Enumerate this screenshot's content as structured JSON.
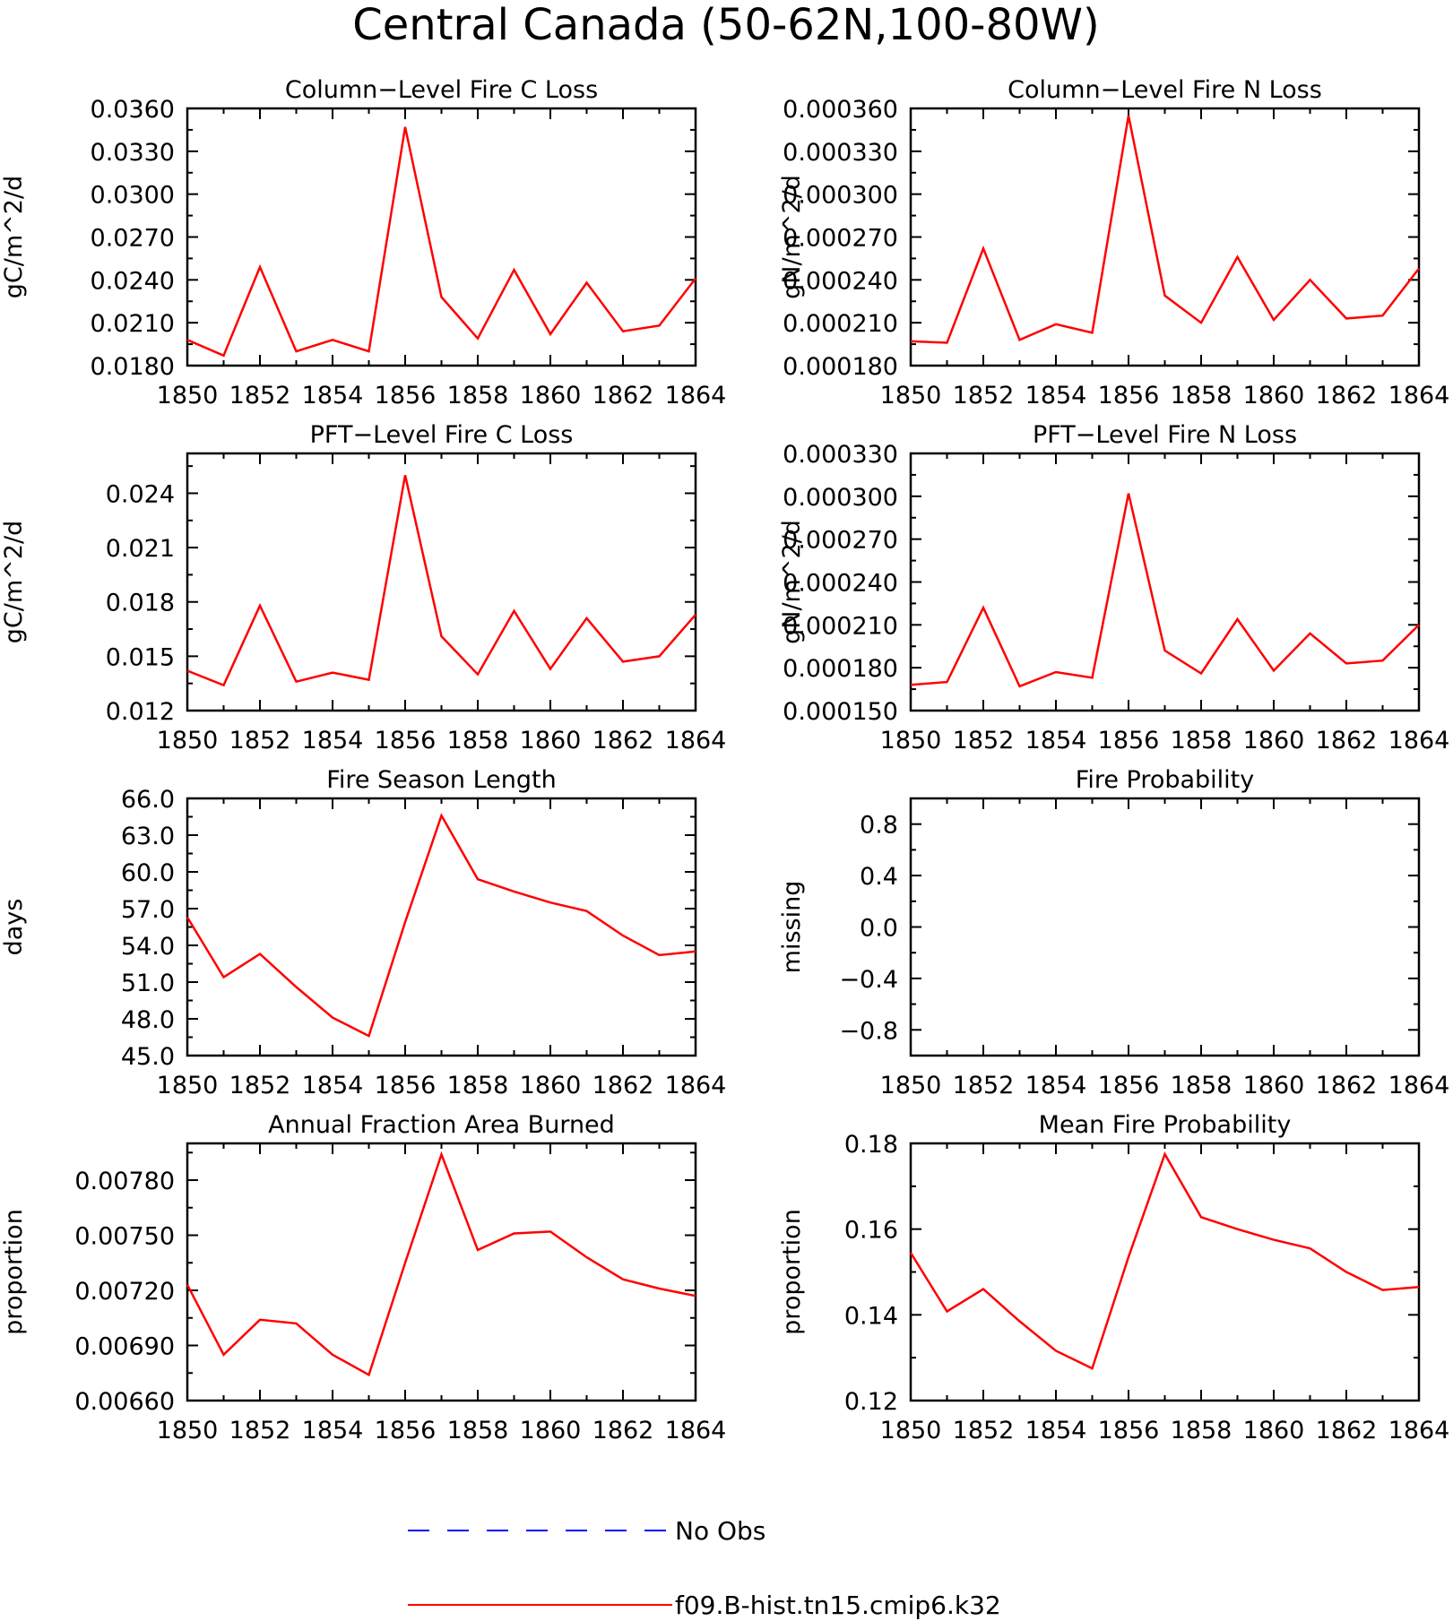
{
  "figure_title": "Central Canada (50-62N,100-80W)",
  "legend": [
    {
      "label": "No Obs",
      "color": "#0000ff",
      "dash": true
    },
    {
      "label": "f09.B-hist.tn15.cmip6.k32",
      "color": "#ff0000",
      "dash": false
    }
  ],
  "chart_data": [
    {
      "type": "line",
      "title": "Column-Level Fire C Loss",
      "xlabel": "",
      "ylabel": "gC/m^2/d",
      "xlim": [
        1850,
        1864
      ],
      "ylim": [
        0.018,
        0.036
      ],
      "xticks": [
        "1850",
        "1852",
        "1854",
        "1856",
        "1858",
        "1860",
        "1862",
        "1864"
      ],
      "yticks": [
        "0.0180",
        "0.0210",
        "0.0240",
        "0.0270",
        "0.0300",
        "0.0330",
        "0.0360"
      ],
      "grid": false,
      "series": [
        {
          "color": "#ff0000",
          "x": [
            1850,
            1851,
            1852,
            1853,
            1854,
            1855,
            1856,
            1857,
            1858,
            1859,
            1860,
            1861,
            1862,
            1863,
            1864
          ],
          "values": [
            0.0198,
            0.0187,
            0.0249,
            0.019,
            0.0198,
            0.019,
            0.0347,
            0.0228,
            0.0199,
            0.0247,
            0.0202,
            0.0238,
            0.0204,
            0.0208,
            0.0241
          ]
        }
      ]
    },
    {
      "type": "line",
      "title": "Column-Level Fire N Loss",
      "xlabel": "",
      "ylabel": "gN/m^2/d",
      "xlim": [
        1850,
        1864
      ],
      "ylim": [
        0.00018,
        0.00036
      ],
      "xticks": [
        "1850",
        "1852",
        "1854",
        "1856",
        "1858",
        "1860",
        "1862",
        "1864"
      ],
      "yticks": [
        "0.000180",
        "0.000210",
        "0.000240",
        "0.000270",
        "0.000300",
        "0.000330",
        "0.000360"
      ],
      "grid": false,
      "series": [
        {
          "color": "#ff0000",
          "x": [
            1850,
            1851,
            1852,
            1853,
            1854,
            1855,
            1856,
            1857,
            1858,
            1859,
            1860,
            1861,
            1862,
            1863,
            1864
          ],
          "values": [
            0.000197,
            0.000196,
            0.000262,
            0.000198,
            0.000209,
            0.000203,
            0.000355,
            0.000229,
            0.00021,
            0.000256,
            0.000212,
            0.00024,
            0.000213,
            0.000215,
            0.000248
          ]
        }
      ]
    },
    {
      "type": "line",
      "title": "PFT-Level Fire C Loss",
      "xlabel": "",
      "ylabel": "gC/m^2/d",
      "xlim": [
        1850,
        1864
      ],
      "ylim": [
        0.012,
        0.0262
      ],
      "xticks": [
        "1850",
        "1852",
        "1854",
        "1856",
        "1858",
        "1860",
        "1862",
        "1864"
      ],
      "yticks": [
        "0.012",
        "0.015",
        "0.018",
        "0.021",
        "0.024"
      ],
      "grid": false,
      "series": [
        {
          "color": "#ff0000",
          "x": [
            1850,
            1851,
            1852,
            1853,
            1854,
            1855,
            1856,
            1857,
            1858,
            1859,
            1860,
            1861,
            1862,
            1863,
            1864
          ],
          "values": [
            0.0142,
            0.0134,
            0.0178,
            0.0136,
            0.0141,
            0.0137,
            0.025,
            0.0161,
            0.014,
            0.0175,
            0.0143,
            0.0171,
            0.0147,
            0.015,
            0.0173
          ]
        }
      ]
    },
    {
      "type": "line",
      "title": "PFT-Level Fire N Loss",
      "xlabel": "",
      "ylabel": "gN/m^2/d",
      "xlim": [
        1850,
        1864
      ],
      "ylim": [
        0.00015,
        0.00033
      ],
      "xticks": [
        "1850",
        "1852",
        "1854",
        "1856",
        "1858",
        "1860",
        "1862",
        "1864"
      ],
      "yticks": [
        "0.000150",
        "0.000180",
        "0.000210",
        "0.000240",
        "0.000270",
        "0.000300",
        "0.000330"
      ],
      "grid": false,
      "series": [
        {
          "color": "#ff0000",
          "x": [
            1850,
            1851,
            1852,
            1853,
            1854,
            1855,
            1856,
            1857,
            1858,
            1859,
            1860,
            1861,
            1862,
            1863,
            1864
          ],
          "values": [
            0.000168,
            0.00017,
            0.000222,
            0.000167,
            0.000177,
            0.000173,
            0.000302,
            0.000192,
            0.000176,
            0.000214,
            0.000178,
            0.000204,
            0.000183,
            0.000185,
            0.00021
          ]
        }
      ]
    },
    {
      "type": "line",
      "title": "Fire Season Length",
      "xlabel": "",
      "ylabel": "days",
      "xlim": [
        1850,
        1864
      ],
      "ylim": [
        45,
        66
      ],
      "xticks": [
        "1850",
        "1852",
        "1854",
        "1856",
        "1858",
        "1860",
        "1862",
        "1864"
      ],
      "yticks": [
        "45.0",
        "48.0",
        "51.0",
        "54.0",
        "57.0",
        "60.0",
        "63.0",
        "66.0"
      ],
      "grid": false,
      "series": [
        {
          "color": "#ff0000",
          "x": [
            1850,
            1851,
            1852,
            1853,
            1854,
            1855,
            1856,
            1857,
            1858,
            1859,
            1860,
            1861,
            1862,
            1863,
            1864
          ],
          "values": [
            56.3,
            51.4,
            53.3,
            50.6,
            48.1,
            46.6,
            55.9,
            64.6,
            59.4,
            58.4,
            57.5,
            56.8,
            54.8,
            53.2,
            53.5
          ]
        }
      ]
    },
    {
      "type": "line",
      "title": "Fire Probability",
      "xlabel": "",
      "ylabel": "missing",
      "xlim": [
        1850,
        1864
      ],
      "ylim": [
        -1.0,
        1.0
      ],
      "xticks": [
        "1850",
        "1852",
        "1854",
        "1856",
        "1858",
        "1860",
        "1862",
        "1864"
      ],
      "yticks": [
        "-0.8",
        "-0.4",
        "0.0",
        "0.4",
        "0.8"
      ],
      "grid": false,
      "series": []
    },
    {
      "type": "line",
      "title": "Annual Fraction Area Burned",
      "xlabel": "",
      "ylabel": "proportion",
      "xlim": [
        1850,
        1864
      ],
      "ylim": [
        0.0066,
        0.008
      ],
      "xticks": [
        "1850",
        "1852",
        "1854",
        "1856",
        "1858",
        "1860",
        "1862",
        "1864"
      ],
      "yticks": [
        "0.00660",
        "0.00690",
        "0.00720",
        "0.00750",
        "0.00780"
      ],
      "grid": false,
      "series": [
        {
          "color": "#ff0000",
          "x": [
            1850,
            1851,
            1852,
            1853,
            1854,
            1855,
            1856,
            1857,
            1858,
            1859,
            1860,
            1861,
            1862,
            1863,
            1864
          ],
          "values": [
            0.00723,
            0.00685,
            0.00704,
            0.00702,
            0.00685,
            0.00674,
            0.00735,
            0.00794,
            0.00742,
            0.00751,
            0.00752,
            0.00738,
            0.00726,
            0.00721,
            0.00717
          ]
        }
      ]
    },
    {
      "type": "line",
      "title": "Mean Fire Probability",
      "xlabel": "",
      "ylabel": "proportion",
      "xlim": [
        1850,
        1864
      ],
      "ylim": [
        0.12,
        0.18
      ],
      "xticks": [
        "1850",
        "1852",
        "1854",
        "1856",
        "1858",
        "1860",
        "1862",
        "1864"
      ],
      "yticks": [
        "0.12",
        "0.14",
        "0.16",
        "0.18"
      ],
      "grid": false,
      "series": [
        {
          "color": "#ff0000",
          "x": [
            1850,
            1851,
            1852,
            1853,
            1854,
            1855,
            1856,
            1857,
            1858,
            1859,
            1860,
            1861,
            1862,
            1863,
            1864
          ],
          "values": [
            0.1545,
            0.1408,
            0.146,
            0.1385,
            0.1316,
            0.1275,
            0.1535,
            0.1775,
            0.1628,
            0.16,
            0.1575,
            0.1555,
            0.15,
            0.1458,
            0.1465
          ]
        }
      ]
    }
  ]
}
